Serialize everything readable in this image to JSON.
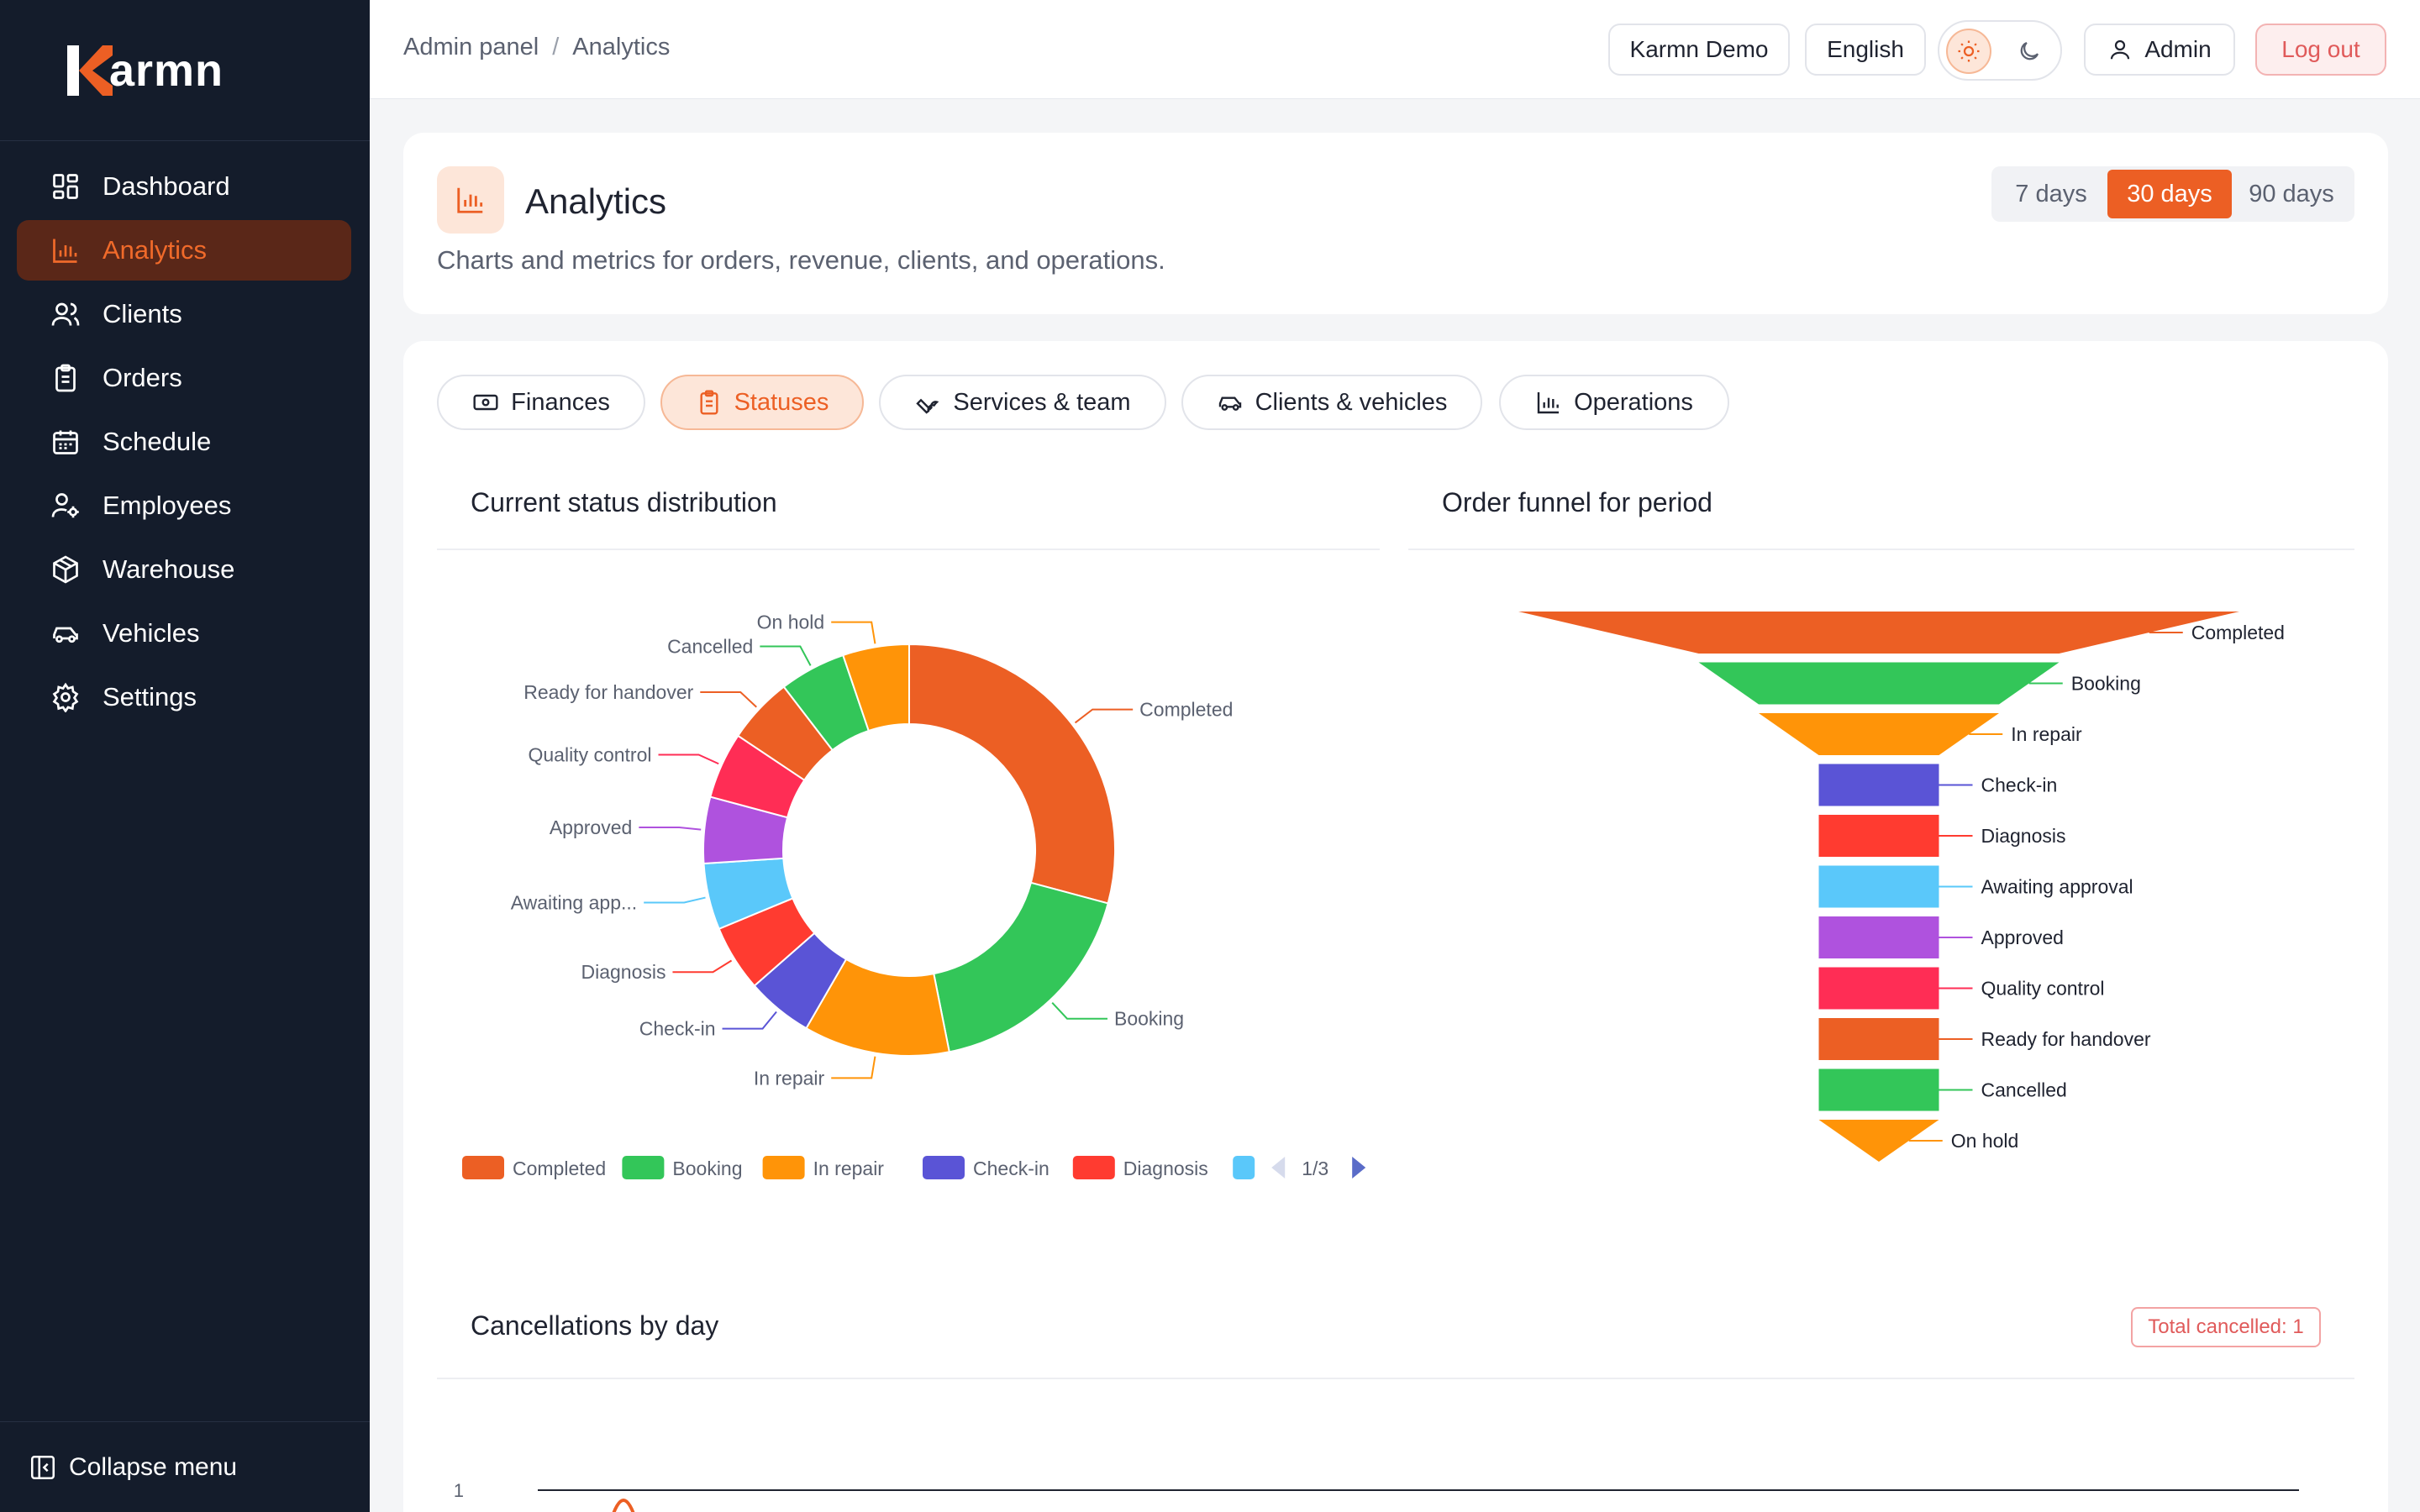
{
  "brand": {
    "name": "armn",
    "accent": "#ec5f24"
  },
  "sidebar": {
    "items": [
      {
        "label": "Dashboard",
        "icon": "dashboard-icon"
      },
      {
        "label": "Analytics",
        "icon": "bar-chart-icon"
      },
      {
        "label": "Clients",
        "icon": "users-icon"
      },
      {
        "label": "Orders",
        "icon": "clipboard-icon"
      },
      {
        "label": "Schedule",
        "icon": "calendar-icon"
      },
      {
        "label": "Employees",
        "icon": "user-gear-icon"
      },
      {
        "label": "Warehouse",
        "icon": "box-icon"
      },
      {
        "label": "Vehicles",
        "icon": "car-icon"
      },
      {
        "label": "Settings",
        "icon": "gear-icon"
      }
    ],
    "active_index": 1,
    "collapse_label": "Collapse menu"
  },
  "topbar": {
    "breadcrumb": [
      "Admin panel",
      "Analytics"
    ],
    "workspace_label": "Karmn Demo",
    "language_label": "English",
    "user_label": "Admin",
    "logout_label": "Log out"
  },
  "header": {
    "title": "Analytics",
    "subtitle": "Charts and metrics for orders, revenue, clients, and operations.",
    "ranges": [
      "7 days",
      "30 days",
      "90 days"
    ],
    "active_range": 1
  },
  "tabs": [
    {
      "label": "Finances",
      "icon": "cash-icon"
    },
    {
      "label": "Statuses",
      "icon": "clipboard-icon"
    },
    {
      "label": "Services & team",
      "icon": "wrench-icon"
    },
    {
      "label": "Clients & vehicles",
      "icon": "car-icon"
    },
    {
      "label": "Operations",
      "icon": "bar-chart-icon"
    }
  ],
  "active_tab": 1,
  "status_chart": {
    "title": "Current status distribution",
    "legend_page": "1/3"
  },
  "funnel_chart": {
    "title": "Order funnel for period"
  },
  "cancellations": {
    "title": "Cancellations by day",
    "badge": "Total cancelled: 1"
  },
  "chart_data": [
    {
      "type": "pie",
      "title": "Current status distribution",
      "categories": [
        "Completed",
        "Booking",
        "In repair",
        "Check-in",
        "Diagnosis",
        "Awaiting app...",
        "Approved",
        "Quality control",
        "Ready for handover",
        "Cancelled",
        "On hold"
      ],
      "values": [
        28,
        17,
        11,
        5,
        5,
        5,
        5,
        5,
        5,
        5,
        5
      ],
      "colors": [
        "#ec5f24",
        "#33c659",
        "#ff9408",
        "#5a54d6",
        "#ff3b30",
        "#5ac8fa",
        "#af52de",
        "#ff2d55",
        "#ec5f24",
        "#33c659",
        "#ff9408"
      ],
      "legend": [
        "Completed",
        "Booking",
        "In repair",
        "Check-in",
        "Diagnosis"
      ],
      "legend_placement": "bottom"
    },
    {
      "type": "bar",
      "title": "Order funnel for period",
      "categories": [
        "Completed",
        "Booking",
        "In repair",
        "Check-in",
        "Diagnosis",
        "Awaiting approval",
        "Approved",
        "Quality control",
        "Ready for handover",
        "Cancelled",
        "On hold"
      ],
      "values": [
        6,
        3,
        2,
        1,
        1,
        1,
        1,
        1,
        1,
        1,
        1
      ],
      "colors": [
        "#ec5f24",
        "#33c659",
        "#ff9408",
        "#5a54d6",
        "#ff3b30",
        "#5ac8fa",
        "#af52de",
        "#ff2d55",
        "#ec5f24",
        "#33c659",
        "#ff9408"
      ]
    },
    {
      "type": "line",
      "title": "Cancellations by day",
      "y_ticks": [
        "1"
      ]
    }
  ]
}
